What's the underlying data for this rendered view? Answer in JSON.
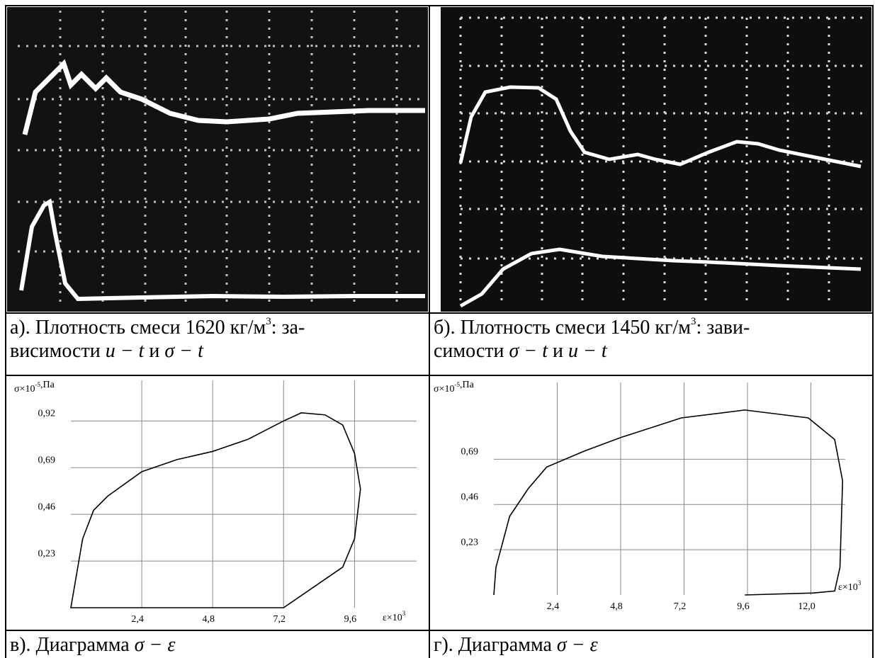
{
  "panels": [
    {
      "caption": [
        [
          "а). Плотность смеси 1620 кг/м",
          {
            "sup": "3"
          },
          ": за-"
        ],
        [
          "висимости ",
          {
            "math": "u − t"
          },
          " и ",
          {
            "math": "σ − t"
          }
        ]
      ]
    },
    {
      "caption": [
        [
          "б). Плотность смеси 1450 кг/м",
          {
            "sup": "3"
          },
          ": зави-"
        ],
        [
          "симости ",
          {
            "math": "σ − t"
          },
          " и ",
          {
            "math": "u − t"
          }
        ]
      ]
    },
    {
      "caption": [
        [
          "в). Диаграмма ",
          {
            "math": "σ − ε"
          }
        ]
      ],
      "chart": {
        "type": "line",
        "ylabel": [
          "σ×10",
          {
            "sup": "-5"
          },
          ",Па"
        ],
        "xlabel": [
          "ε×10",
          {
            "sup": "3"
          }
        ],
        "xlim": [
          0,
          11.7
        ],
        "ylim": [
          0,
          1.12
        ],
        "xticks": [
          {
            "value": 2.4,
            "label": "2,4"
          },
          {
            "value": 4.8,
            "label": "4,8"
          },
          {
            "value": 7.2,
            "label": "7,2"
          },
          {
            "value": 9.6,
            "label": "9,6"
          }
        ],
        "yticks": [
          {
            "value": 0.23,
            "label": "0,23"
          },
          {
            "value": 0.46,
            "label": "0,46"
          },
          {
            "value": 0.69,
            "label": "0,69"
          },
          {
            "value": 0.92,
            "label": "0,92"
          }
        ],
        "x": [
          0,
          0.4,
          0.77,
          1.25,
          2.4,
          3.6,
          4.8,
          6.0,
          7.2,
          7.8,
          8.6,
          9.2,
          9.6,
          9.8,
          9.6,
          9.2,
          8.2,
          7.2
        ],
        "y": [
          0,
          0.34,
          0.48,
          0.55,
          0.67,
          0.73,
          0.77,
          0.83,
          0.92,
          0.96,
          0.95,
          0.9,
          0.76,
          0.585,
          0.34,
          0.2,
          0.1,
          0
        ]
      }
    },
    {
      "caption": [
        [
          "г). Диаграмма ",
          {
            "math": "σ − ε"
          }
        ]
      ],
      "chart": {
        "type": "line",
        "ylabel": [
          "σ×10",
          {
            "sup": "-5"
          },
          ",Па"
        ],
        "xlabel": [
          "ε×10",
          {
            "sup": "3"
          }
        ],
        "xlim": [
          0,
          13.3
        ],
        "ylim": [
          0,
          1.08
        ],
        "xticks": [
          {
            "value": 2.4,
            "label": "2,4"
          },
          {
            "value": 4.8,
            "label": "4,8"
          },
          {
            "value": 7.2,
            "label": "7,2"
          },
          {
            "value": 9.6,
            "label": "9,6"
          },
          {
            "value": 12.0,
            "label": "12,0"
          }
        ],
        "yticks": [
          {
            "value": 0.23,
            "label": "0,23"
          },
          {
            "value": 0.46,
            "label": "0,46"
          },
          {
            "value": 0.69,
            "label": "0,69"
          }
        ],
        "x": [
          0,
          0.08,
          0.6,
          1.3,
          2.0,
          3.4,
          4.8,
          7.1,
          9.5,
          11.9,
          12.9,
          13.2,
          13.1,
          12.9,
          12.1,
          9.5
        ],
        "y": [
          0,
          0.14,
          0.4,
          0.54,
          0.65,
          0.73,
          0.8,
          0.9,
          0.94,
          0.9,
          0.79,
          0.58,
          0.14,
          0.02,
          0.01,
          0
        ]
      }
    }
  ]
}
